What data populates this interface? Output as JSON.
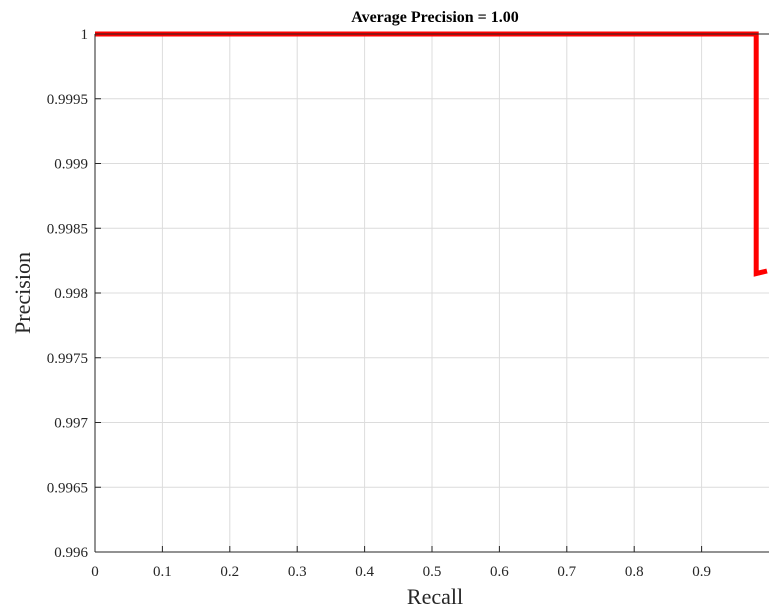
{
  "chart_data": {
    "type": "line",
    "title": "Average Precision = 1.00",
    "xlabel": "Recall",
    "ylabel": "Precision",
    "xlim": [
      0,
      1
    ],
    "ylim": [
      0.996,
      1
    ],
    "grid": true,
    "x_ticks": [
      0,
      0.1,
      0.2,
      0.3,
      0.4,
      0.5,
      0.6,
      0.7,
      0.8,
      0.9
    ],
    "x_tick_labels": [
      "0",
      "0.1",
      "0.2",
      "0.3",
      "0.4",
      "0.5",
      "0.6",
      "0.7",
      "0.8",
      "0.9"
    ],
    "y_ticks": [
      0.996,
      0.9965,
      0.997,
      0.9975,
      0.998,
      0.9985,
      0.999,
      0.9995,
      1
    ],
    "y_tick_labels": [
      "0.996",
      "0.9965",
      "0.997",
      "0.9975",
      "0.998",
      "0.9985",
      "0.999",
      "0.9995",
      "1"
    ],
    "series": [
      {
        "color": "#ff0000",
        "x": [
          0,
          0.981,
          0.981,
          0.997
        ],
        "y": [
          1,
          1,
          0.99815,
          0.99817
        ]
      }
    ]
  }
}
